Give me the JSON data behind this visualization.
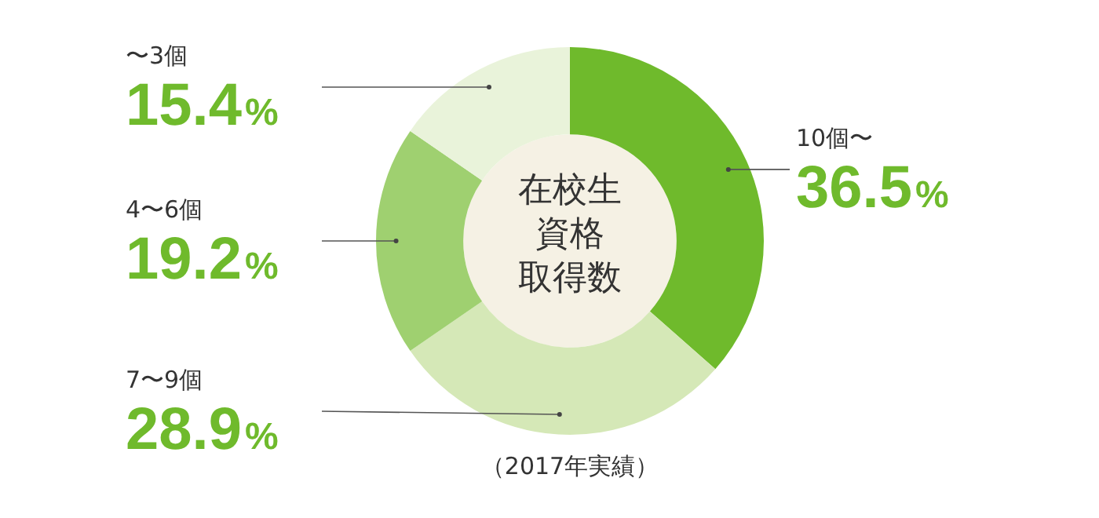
{
  "chart_data": {
    "type": "donut",
    "title": "在校生資格取得数",
    "annotations": [
      "（2017年実績）"
    ],
    "categories": [
      "10個〜",
      "7〜9個",
      "4〜6個",
      "〜3個"
    ],
    "values": [
      36.5,
      28.9,
      19.2,
      15.4
    ],
    "colors": [
      "#6fba2c",
      "#d5e8b7",
      "#9fd070",
      "#e9f3da"
    ],
    "value_labels": [
      "36.5%",
      "28.9%",
      "19.2%",
      "15.4%"
    ],
    "legend": false
  }
}
